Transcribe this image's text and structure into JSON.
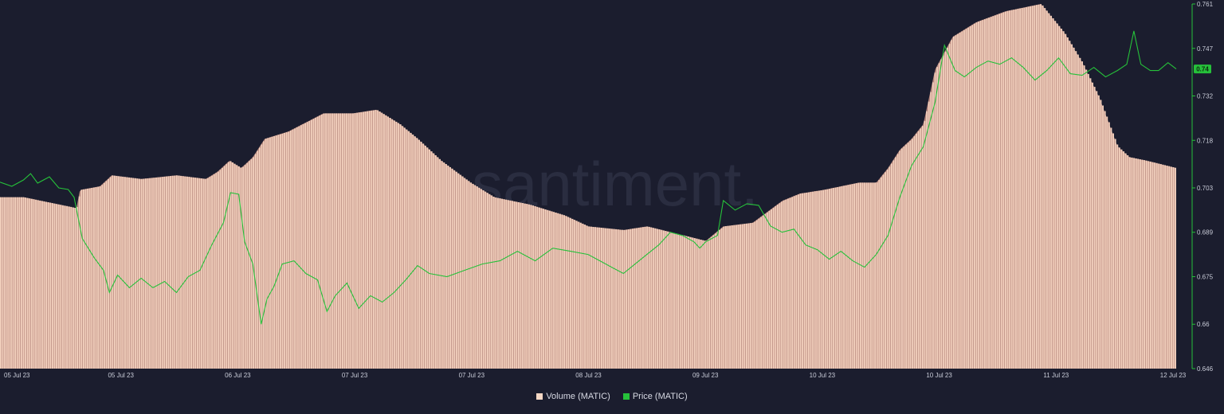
{
  "watermark": "santiment.",
  "price_badge": "0.74",
  "colors": {
    "background": "#1b1d2e",
    "volume": "#f2d0bd",
    "volume_gap": "#b98a80",
    "price": "#26c13a",
    "axis": "#26c13a",
    "badge": "#26c13a"
  },
  "legend": [
    {
      "label": "Volume (MATIC)",
      "color": "#f6d8c5"
    },
    {
      "label": "Price (MATIC)",
      "color": "#26c13a"
    }
  ],
  "chart_data": {
    "type": "bar+line",
    "x_ticks": [
      "05 Jul 23",
      "05 Jul 23",
      "06 Jul 23",
      "07 Jul 23",
      "07 Jul 23",
      "08 Jul 23",
      "09 Jul 23",
      "10 Jul 23",
      "10 Jul 23",
      "11 Jul 23",
      "12 Jul 23"
    ],
    "y_ticks": [
      "0.761",
      "0.747",
      "0.732",
      "0.718",
      "0.703",
      "0.689",
      "0.675",
      "0.66",
      "0.646"
    ],
    "ylim": [
      0.646,
      0.761
    ],
    "x_range": [
      0,
      100
    ],
    "series": [
      {
        "name": "Volume (MATIC)",
        "kind": "bar",
        "y_axis": "hidden",
        "ylim": [
          0,
          100
        ],
        "points": [
          [
            0,
            47
          ],
          [
            2,
            47
          ],
          [
            5,
            45
          ],
          [
            6.5,
            44
          ],
          [
            6.8,
            49
          ],
          [
            8.5,
            50
          ],
          [
            9.5,
            53
          ],
          [
            12,
            52
          ],
          [
            15,
            53
          ],
          [
            17.5,
            52
          ],
          [
            18.5,
            54
          ],
          [
            19.5,
            57
          ],
          [
            20.5,
            55
          ],
          [
            21.5,
            58
          ],
          [
            22.5,
            63
          ],
          [
            24.5,
            65
          ],
          [
            27.5,
            70
          ],
          [
            30,
            70
          ],
          [
            32,
            71
          ],
          [
            34,
            67
          ],
          [
            35.5,
            63
          ],
          [
            37.5,
            57
          ],
          [
            40,
            51
          ],
          [
            42,
            47
          ],
          [
            45,
            45
          ],
          [
            48,
            42
          ],
          [
            50,
            39
          ],
          [
            53,
            38
          ],
          [
            55,
            39
          ],
          [
            57.5,
            37
          ],
          [
            60,
            35
          ],
          [
            61.5,
            39
          ],
          [
            64,
            40
          ],
          [
            66.5,
            46
          ],
          [
            68,
            48
          ],
          [
            70,
            49
          ],
          [
            73,
            51
          ],
          [
            74.5,
            51
          ],
          [
            75.5,
            55
          ],
          [
            76.5,
            60
          ],
          [
            77.5,
            63
          ],
          [
            78.5,
            67
          ],
          [
            79.5,
            82
          ],
          [
            81,
            91
          ],
          [
            83,
            95
          ],
          [
            85.5,
            98
          ],
          [
            87,
            99
          ],
          [
            88.5,
            100
          ],
          [
            90.5,
            92
          ],
          [
            92,
            84
          ],
          [
            93.5,
            74
          ],
          [
            95,
            61
          ],
          [
            96,
            58
          ],
          [
            97.5,
            57
          ],
          [
            100,
            55
          ]
        ]
      },
      {
        "name": "Price (MATIC)",
        "kind": "line",
        "y_axis": "right",
        "points": [
          [
            0,
            0.7048
          ],
          [
            1,
            0.7035
          ],
          [
            2,
            0.7055
          ],
          [
            2.6,
            0.7075
          ],
          [
            3.2,
            0.7045
          ],
          [
            4.2,
            0.7065
          ],
          [
            5,
            0.703
          ],
          [
            5.8,
            0.7025
          ],
          [
            6.3,
            0.7
          ],
          [
            7,
            0.687
          ],
          [
            8,
            0.681
          ],
          [
            8.8,
            0.677
          ],
          [
            9.3,
            0.67
          ],
          [
            10,
            0.6755
          ],
          [
            11,
            0.6715
          ],
          [
            12,
            0.6745
          ],
          [
            13,
            0.6715
          ],
          [
            14,
            0.6735
          ],
          [
            15,
            0.67
          ],
          [
            16,
            0.675
          ],
          [
            17,
            0.677
          ],
          [
            18,
            0.685
          ],
          [
            19,
            0.692
          ],
          [
            19.6,
            0.7015
          ],
          [
            20.3,
            0.701
          ],
          [
            20.8,
            0.686
          ],
          [
            21.5,
            0.679
          ],
          [
            22.2,
            0.66
          ],
          [
            22.7,
            0.668
          ],
          [
            23.3,
            0.672
          ],
          [
            24,
            0.679
          ],
          [
            25,
            0.68
          ],
          [
            26,
            0.676
          ],
          [
            27,
            0.674
          ],
          [
            27.8,
            0.664
          ],
          [
            28.5,
            0.669
          ],
          [
            29.5,
            0.673
          ],
          [
            30.5,
            0.665
          ],
          [
            31.5,
            0.669
          ],
          [
            32.5,
            0.667
          ],
          [
            33.5,
            0.67
          ],
          [
            34.5,
            0.674
          ],
          [
            35.5,
            0.6785
          ],
          [
            36.5,
            0.676
          ],
          [
            38,
            0.675
          ],
          [
            39.5,
            0.677
          ],
          [
            41,
            0.679
          ],
          [
            42.5,
            0.68
          ],
          [
            44,
            0.683
          ],
          [
            45.5,
            0.68
          ],
          [
            47,
            0.684
          ],
          [
            48.5,
            0.683
          ],
          [
            50,
            0.682
          ],
          [
            51,
            0.68
          ],
          [
            52,
            0.678
          ],
          [
            53,
            0.676
          ],
          [
            54,
            0.679
          ],
          [
            55,
            0.682
          ],
          [
            56,
            0.685
          ],
          [
            57,
            0.689
          ],
          [
            58,
            0.688
          ],
          [
            59,
            0.686
          ],
          [
            59.5,
            0.684
          ],
          [
            60,
            0.686
          ],
          [
            61,
            0.688
          ],
          [
            61.5,
            0.699
          ],
          [
            62.5,
            0.696
          ],
          [
            63.5,
            0.698
          ],
          [
            64.5,
            0.6975
          ],
          [
            65.5,
            0.691
          ],
          [
            66.5,
            0.689
          ],
          [
            67.5,
            0.69
          ],
          [
            68.5,
            0.685
          ],
          [
            69.5,
            0.6835
          ],
          [
            70.5,
            0.6805
          ],
          [
            71.5,
            0.683
          ],
          [
            72.5,
            0.68
          ],
          [
            73.5,
            0.678
          ],
          [
            74.5,
            0.682
          ],
          [
            75.5,
            0.688
          ],
          [
            76.5,
            0.7
          ],
          [
            77.5,
            0.71
          ],
          [
            78.5,
            0.716
          ],
          [
            79.5,
            0.73
          ],
          [
            80.3,
            0.748
          ],
          [
            81.2,
            0.74
          ],
          [
            82,
            0.738
          ],
          [
            83,
            0.741
          ],
          [
            84,
            0.743
          ],
          [
            85,
            0.742
          ],
          [
            86,
            0.744
          ],
          [
            87,
            0.741
          ],
          [
            88,
            0.737
          ],
          [
            89,
            0.74
          ],
          [
            90,
            0.744
          ],
          [
            91,
            0.739
          ],
          [
            92,
            0.7385
          ],
          [
            93,
            0.741
          ],
          [
            94,
            0.738
          ],
          [
            95,
            0.74
          ],
          [
            95.8,
            0.742
          ],
          [
            96.4,
            0.7525
          ],
          [
            97,
            0.742
          ],
          [
            97.8,
            0.74
          ],
          [
            98.5,
            0.74
          ],
          [
            99.3,
            0.7425
          ],
          [
            100,
            0.7405
          ]
        ]
      }
    ],
    "grid": false,
    "legend_position": "bottom-center"
  }
}
